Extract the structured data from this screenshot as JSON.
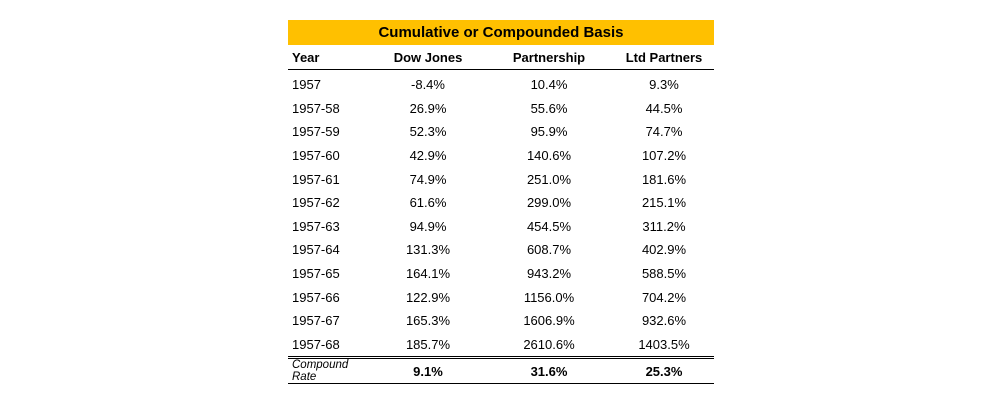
{
  "title": "Cumulative or Compounded Basis",
  "headers": {
    "year": "Year",
    "dow": "Dow Jones",
    "partnership": "Partnership",
    "ltd": "Ltd Partners"
  },
  "rows": [
    {
      "year": "1957",
      "dow": "-8.4%",
      "partnership": "10.4%",
      "ltd": "9.3%"
    },
    {
      "year": "1957-58",
      "dow": "26.9%",
      "partnership": "55.6%",
      "ltd": "44.5%"
    },
    {
      "year": "1957-59",
      "dow": "52.3%",
      "partnership": "95.9%",
      "ltd": "74.7%"
    },
    {
      "year": "1957-60",
      "dow": "42.9%",
      "partnership": "140.6%",
      "ltd": "107.2%"
    },
    {
      "year": "1957-61",
      "dow": "74.9%",
      "partnership": "251.0%",
      "ltd": "181.6%"
    },
    {
      "year": "1957-62",
      "dow": "61.6%",
      "partnership": "299.0%",
      "ltd": "215.1%"
    },
    {
      "year": "1957-63",
      "dow": "94.9%",
      "partnership": "454.5%",
      "ltd": "311.2%"
    },
    {
      "year": "1957-64",
      "dow": "131.3%",
      "partnership": "608.7%",
      "ltd": "402.9%"
    },
    {
      "year": "1957-65",
      "dow": "164.1%",
      "partnership": "943.2%",
      "ltd": "588.5%"
    },
    {
      "year": "1957-66",
      "dow": "122.9%",
      "partnership": "1156.0%",
      "ltd": "704.2%"
    },
    {
      "year": "1957-67",
      "dow": "165.3%",
      "partnership": "1606.9%",
      "ltd": "932.6%"
    },
    {
      "year": "1957-68",
      "dow": "185.7%",
      "partnership": "2610.6%",
      "ltd": "1403.5%"
    }
  ],
  "footer": {
    "label": "Compound Rate",
    "dow": "9.1%",
    "partnership": "31.6%",
    "ltd": "25.3%"
  },
  "colors": {
    "title_background": "#FFC000"
  }
}
